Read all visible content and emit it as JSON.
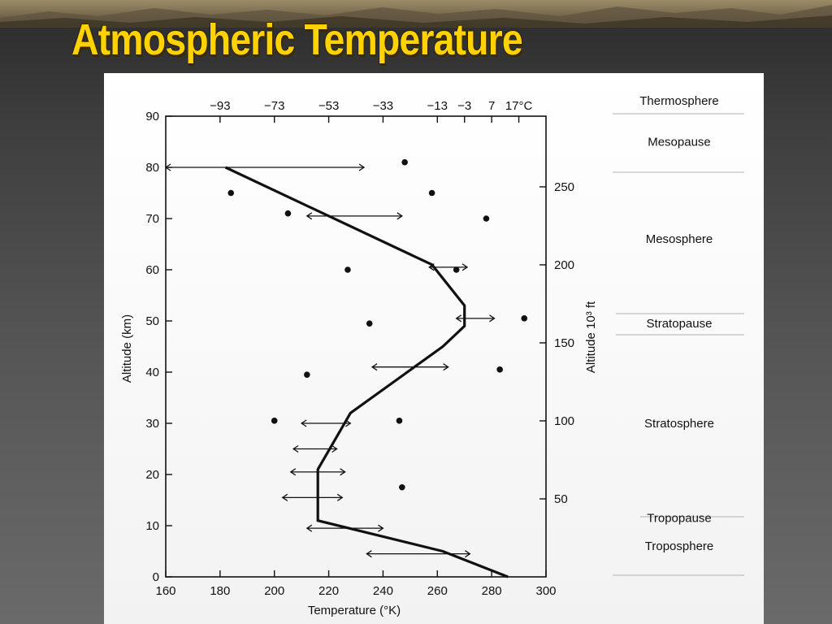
{
  "slide": {
    "title": "Atmospheric Temperature"
  },
  "chart_data": {
    "type": "line",
    "title": "",
    "xlabel": "Temperature (°K)",
    "ylabel": "Altitude (km)",
    "y2label": "Altitude 10³ ft",
    "xlim": [
      160,
      300
    ],
    "ylim": [
      0,
      90
    ],
    "x_ticks": [
      160,
      180,
      200,
      220,
      240,
      260,
      280,
      300
    ],
    "y_ticks": [
      0,
      10,
      20,
      30,
      40,
      50,
      60,
      70,
      80,
      90
    ],
    "top_axis": {
      "unit": "°C",
      "ticks": [
        {
          "label": "−93",
          "k": 180
        },
        {
          "label": "−73",
          "k": 200
        },
        {
          "label": "−53",
          "k": 220
        },
        {
          "label": "−33",
          "k": 240
        },
        {
          "label": "−13",
          "k": 260
        },
        {
          "label": "−3",
          "k": 270
        },
        {
          "label": "7",
          "k": 280
        },
        {
          "label": "17°C",
          "k": 290
        }
      ]
    },
    "right_axis": {
      "unit": "10³ ft",
      "ticks": [
        {
          "label": "50",
          "ft": 50
        },
        {
          "label": "100",
          "ft": 100
        },
        {
          "label": "150",
          "ft": 150
        },
        {
          "label": "200",
          "ft": 200
        },
        {
          "label": "250",
          "ft": 250
        }
      ]
    },
    "series": [
      {
        "x": [
          286,
          262,
          216,
          216,
          228,
          262,
          270,
          270,
          258,
          182
        ],
        "y": [
          0,
          5,
          11,
          21,
          32,
          45,
          49,
          53,
          61,
          80
        ]
      }
    ],
    "range_bars": [
      {
        "y": 80,
        "x": [
          160,
          233
        ]
      },
      {
        "y": 70.5,
        "x": [
          212,
          247
        ]
      },
      {
        "y": 60.5,
        "x": [
          257,
          271
        ]
      },
      {
        "y": 50.5,
        "x": [
          267,
          281
        ]
      },
      {
        "y": 41,
        "x": [
          236,
          264
        ]
      },
      {
        "y": 30,
        "x": [
          210,
          228
        ]
      },
      {
        "y": 25,
        "x": [
          207,
          223
        ]
      },
      {
        "y": 20.5,
        "x": [
          206,
          226
        ]
      },
      {
        "y": 15.5,
        "x": [
          203,
          225
        ]
      },
      {
        "y": 9.5,
        "x": [
          212,
          240
        ]
      },
      {
        "y": 4.5,
        "x": [
          234,
          272
        ]
      }
    ],
    "points": [
      {
        "x": 248,
        "y": 81
      },
      {
        "x": 258,
        "y": 75
      },
      {
        "x": 184,
        "y": 75
      },
      {
        "x": 205,
        "y": 71
      },
      {
        "x": 278,
        "y": 70
      },
      {
        "x": 227,
        "y": 60
      },
      {
        "x": 267,
        "y": 60
      },
      {
        "x": 292,
        "y": 50.5
      },
      {
        "x": 235,
        "y": 49.5
      },
      {
        "x": 283,
        "y": 40.5
      },
      {
        "x": 212,
        "y": 39.5
      },
      {
        "x": 200,
        "y": 30.5
      },
      {
        "x": 246,
        "y": 30.5
      },
      {
        "x": 247,
        "y": 17.5
      }
    ],
    "layers": [
      {
        "name": "Thermosphere",
        "km": 93
      },
      {
        "name": "Mesopause",
        "km": 85
      },
      {
        "name": "Mesosphere",
        "km": 66
      },
      {
        "name": "Stratopause",
        "km": 49.5
      },
      {
        "name": "Stratosphere",
        "km": 30
      },
      {
        "name": "Tropopause",
        "km": 11.5
      },
      {
        "name": "Troposphere",
        "km": 6
      }
    ]
  }
}
